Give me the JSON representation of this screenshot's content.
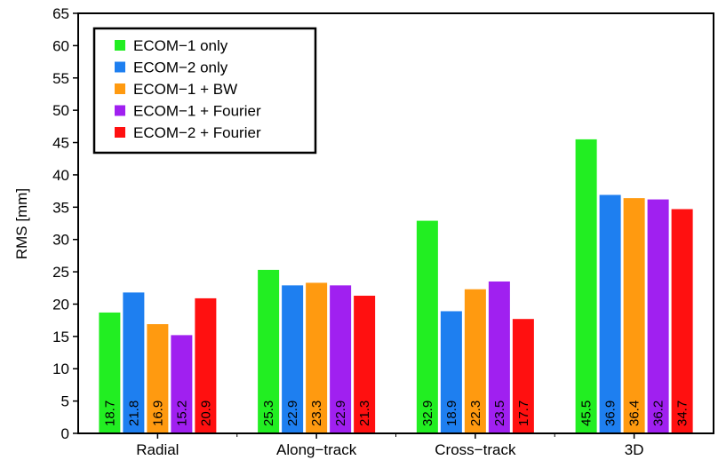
{
  "chart_data": {
    "type": "bar",
    "title": "",
    "xlabel": "",
    "ylabel": "RMS [mm]",
    "ylim": [
      0,
      65
    ],
    "yticks": [
      0,
      5,
      10,
      15,
      20,
      25,
      30,
      35,
      40,
      45,
      50,
      55,
      60,
      65
    ],
    "categories": [
      "Radial",
      "Along−track",
      "Cross−track",
      "3D"
    ],
    "legend_position": "top-left",
    "grid": false,
    "series": [
      {
        "name": "ECOM−1 only",
        "color": "#22ee22",
        "values": [
          18.7,
          25.3,
          32.9,
          45.5
        ]
      },
      {
        "name": "ECOM−2 only",
        "color": "#1e7ff0",
        "values": [
          21.8,
          22.9,
          18.9,
          36.9
        ]
      },
      {
        "name": "ECOM−1 + BW",
        "color": "#ff9a10",
        "values": [
          16.9,
          23.3,
          22.3,
          36.4
        ]
      },
      {
        "name": "ECOM−1 + Fourier",
        "color": "#a020f0",
        "values": [
          15.2,
          22.9,
          23.5,
          36.2
        ]
      },
      {
        "name": "ECOM−2 + Fourier",
        "color": "#ff1010",
        "values": [
          20.9,
          21.3,
          17.7,
          34.7
        ]
      }
    ]
  }
}
